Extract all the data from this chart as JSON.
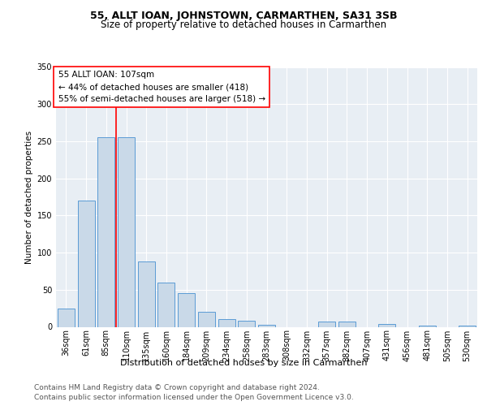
{
  "title": "55, ALLT IOAN, JOHNSTOWN, CARMARTHEN, SA31 3SB",
  "subtitle": "Size of property relative to detached houses in Carmarthen",
  "xlabel": "Distribution of detached houses by size in Carmarthen",
  "ylabel": "Number of detached properties",
  "bar_color": "#c9d9e8",
  "bar_edge_color": "#5b9bd5",
  "background_color": "#e8eef4",
  "plot_bg_color": "#e8eef4",
  "categories": [
    "36sqm",
    "61sqm",
    "85sqm",
    "110sqm",
    "135sqm",
    "160sqm",
    "184sqm",
    "209sqm",
    "234sqm",
    "258sqm",
    "283sqm",
    "308sqm",
    "332sqm",
    "357sqm",
    "382sqm",
    "407sqm",
    "431sqm",
    "456sqm",
    "481sqm",
    "505sqm",
    "530sqm"
  ],
  "values": [
    25,
    170,
    255,
    255,
    88,
    60,
    45,
    20,
    10,
    8,
    3,
    0,
    0,
    7,
    7,
    0,
    4,
    0,
    2,
    0,
    2
  ],
  "ylim": [
    0,
    350
  ],
  "yticks": [
    0,
    50,
    100,
    150,
    200,
    250,
    300,
    350
  ],
  "property_label": "55 ALLT IOAN: 107sqm",
  "annotation_line1": "← 44% of detached houses are smaller (418)",
  "annotation_line2": "55% of semi-detached houses are larger (518) →",
  "vline_x": 2.5,
  "footer1": "Contains HM Land Registry data © Crown copyright and database right 2024.",
  "footer2": "Contains public sector information licensed under the Open Government Licence v3.0.",
  "title_fontsize": 9,
  "subtitle_fontsize": 8.5,
  "xlabel_fontsize": 8,
  "ylabel_fontsize": 7.5,
  "tick_fontsize": 7,
  "annot_fontsize": 7.5,
  "footer_fontsize": 6.5
}
